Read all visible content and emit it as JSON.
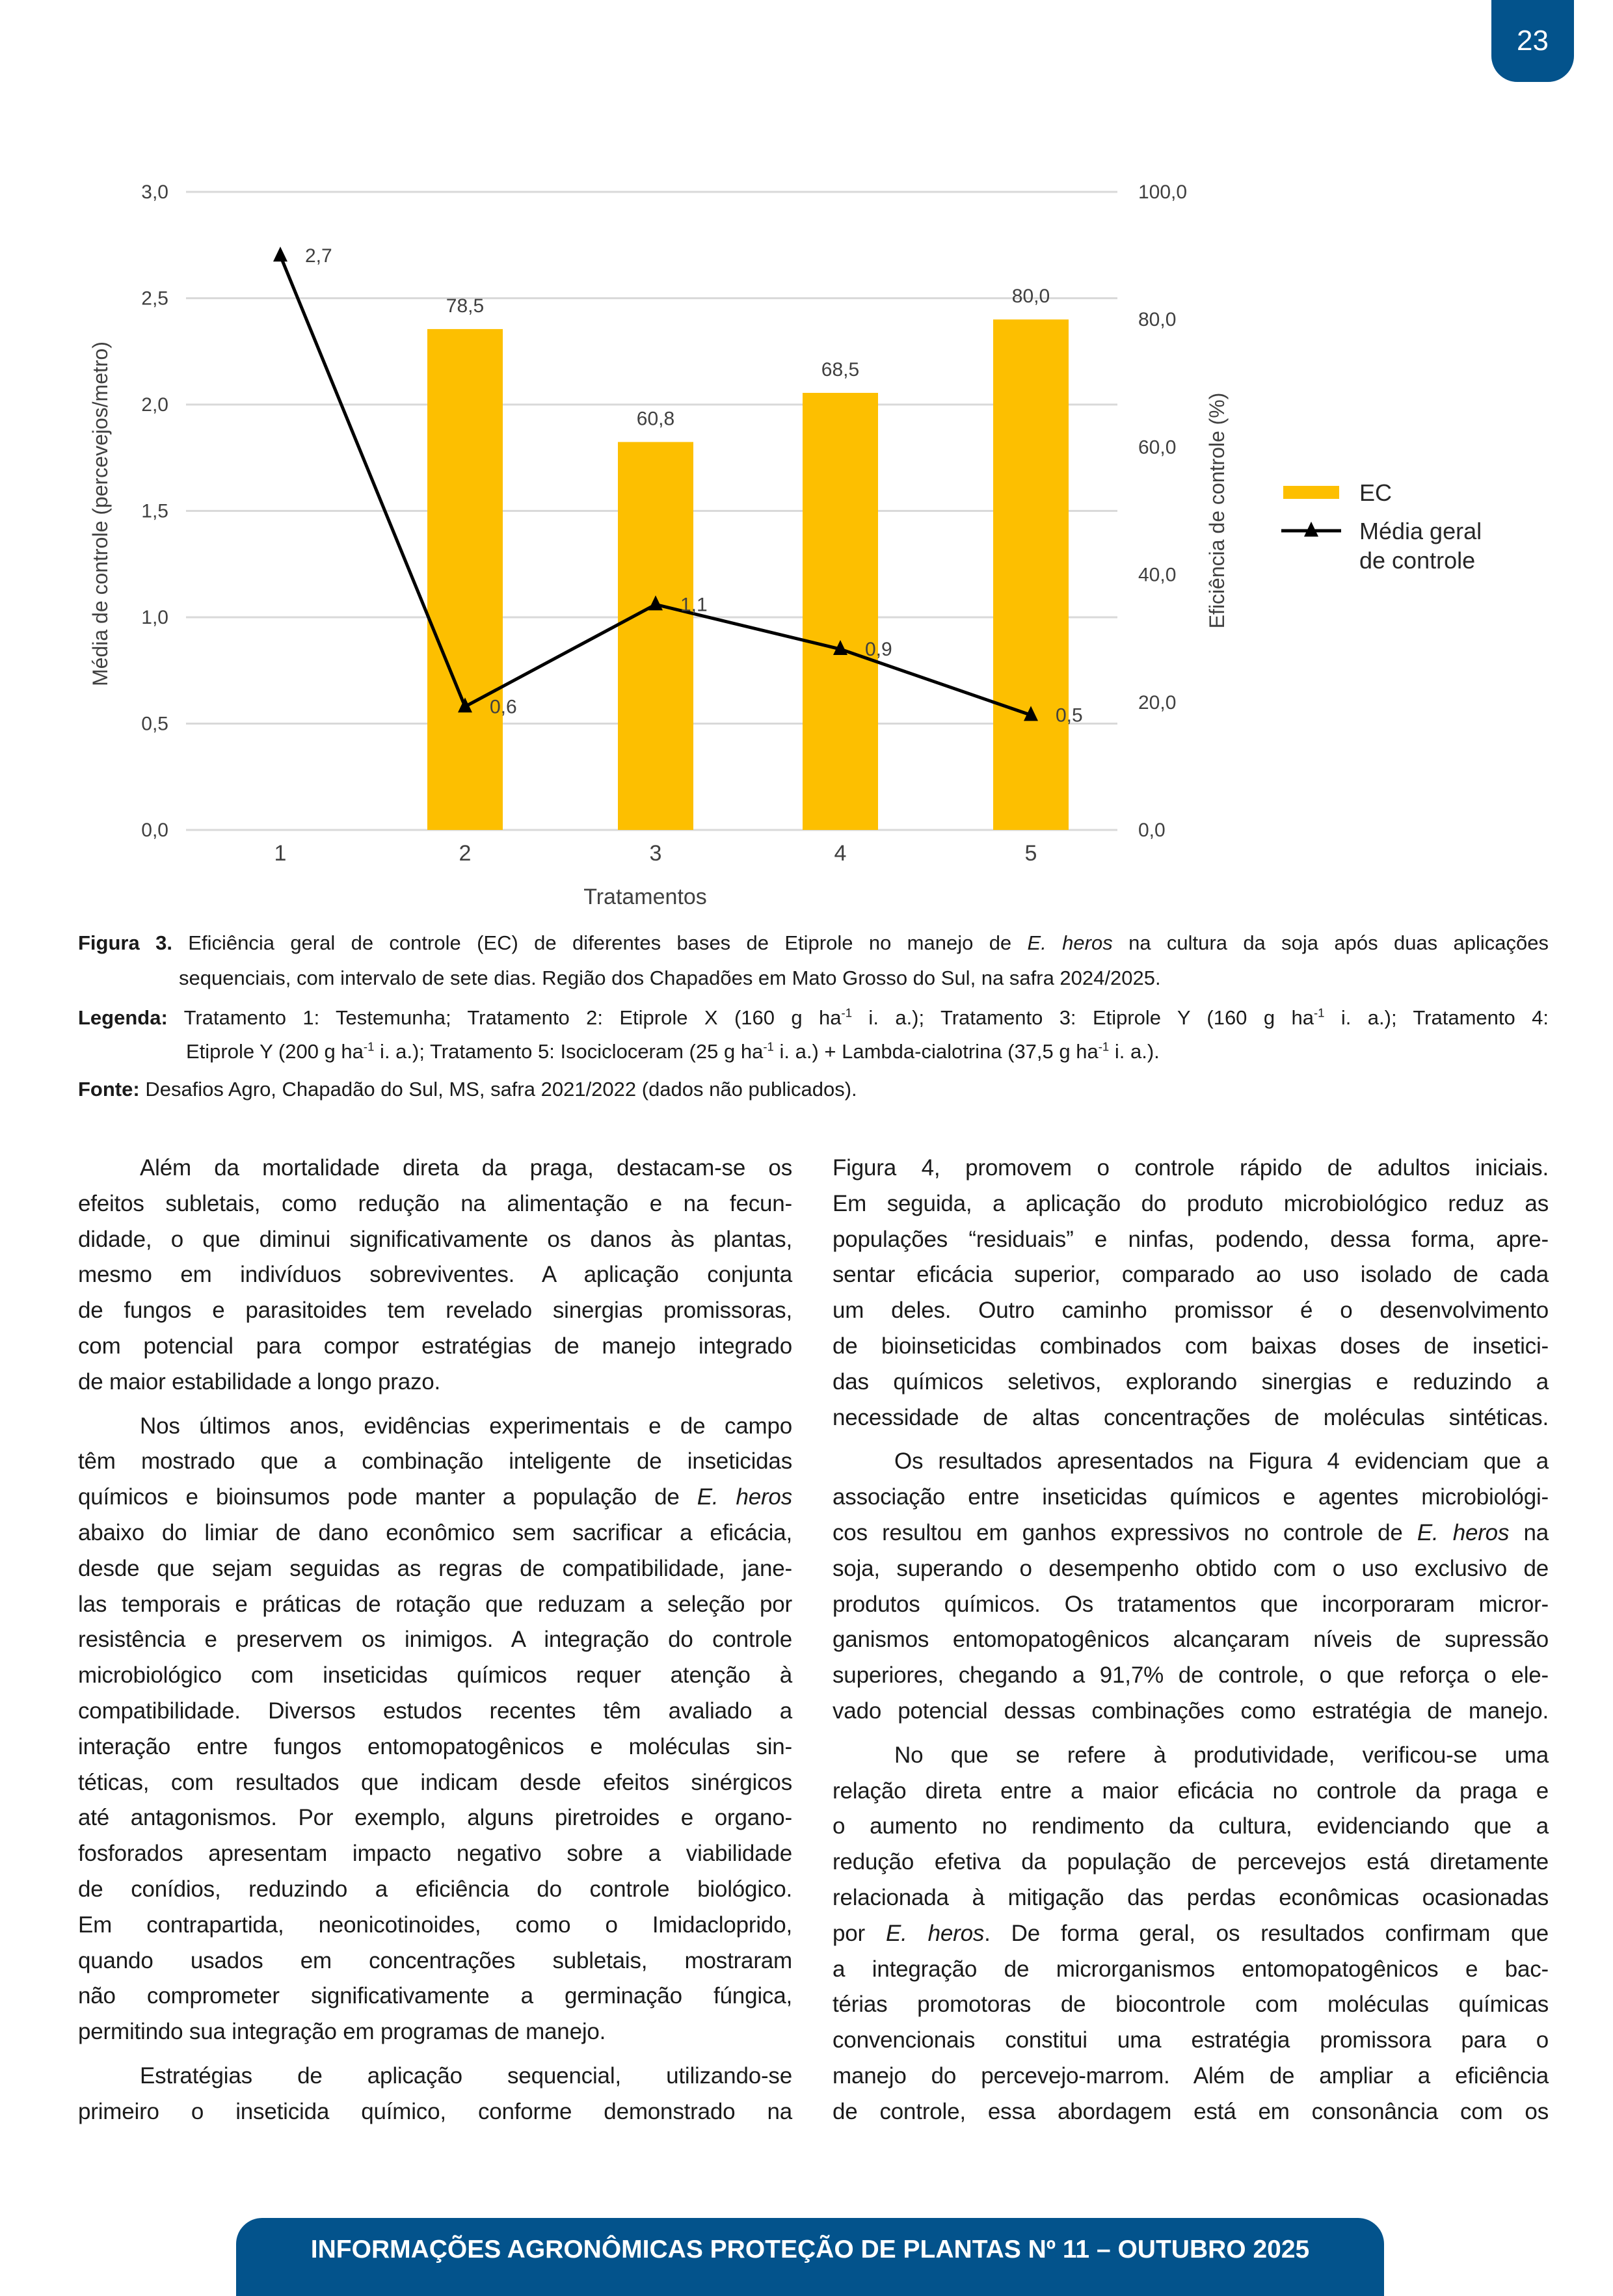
{
  "page_number": "23",
  "chart_data": {
    "type": "bar+line",
    "categories": [
      "1",
      "2",
      "3",
      "4",
      "5"
    ],
    "xlabel": "Tratamentos",
    "ylabel_left": "Média de controle (percevejos/metro)",
    "ylabel_right": "Eficiência de controle (%)",
    "ylim_left": [
      0,
      3.0
    ],
    "ylim_right": [
      0,
      100
    ],
    "yticks_left": [
      "0,0",
      "0,5",
      "1,0",
      "1,5",
      "2,0",
      "2,5",
      "3,0"
    ],
    "yticks_right": [
      "0,0",
      "20,0",
      "40,0",
      "60,0",
      "80,0",
      "100,0"
    ],
    "grid": true,
    "legend_position": "right",
    "series": [
      {
        "name": "EC",
        "type": "bar",
        "axis": "right",
        "color": "#fdbf00",
        "values": [
          null,
          78.5,
          60.8,
          68.5,
          80.0
        ],
        "labels": [
          "",
          "78,5",
          "60,8",
          "68,5",
          "80,0"
        ]
      },
      {
        "name": "Média geral de controle",
        "legend_lines": [
          "Média geral",
          "de controle"
        ],
        "type": "line",
        "axis": "left",
        "color": "#000000",
        "marker": "triangle",
        "values": [
          2.7,
          0.58,
          1.06,
          0.85,
          0.54
        ],
        "labels": [
          "2,7",
          "0,6",
          "1,1",
          "0,9",
          "0,5"
        ]
      }
    ]
  },
  "caption": {
    "lines": [
      [
        [
          "b",
          "Figura 3."
        ],
        [
          "",
          " Eficiência geral de controle (EC) de diferentes bases de Etiprole no manejo de "
        ],
        [
          "i",
          "E. heros"
        ],
        [
          "",
          " na cultura da soja após duas aplicações"
        ]
      ],
      [
        [
          "",
          "sequenciais, com intervalo de sete dias. Região dos Chapadões em Mato Grosso do Sul, na safra 2024/2025."
        ]
      ],
      [
        [
          "b",
          "Legenda:"
        ],
        [
          "",
          " Tratamento 1: Testemunha; Tratamento 2: Etiprole X (160 g ha"
        ],
        [
          "sup",
          "-1"
        ],
        [
          "",
          " i. a.); Tratamento 3: Etiprole Y (160 g ha"
        ],
        [
          "sup",
          "-1"
        ],
        [
          "",
          " i. a.); Tratamento 4:"
        ]
      ],
      [
        [
          "",
          "Etiprole Y (200 g ha"
        ],
        [
          "sup",
          "-1"
        ],
        [
          "",
          " i. a.); Tratamento 5: Isocicloceram (25 g ha"
        ],
        [
          "sup",
          "-1"
        ],
        [
          "",
          " i. a.) + Lambda-cialotrina  (37,5 g ha"
        ],
        [
          "sup",
          "-1"
        ],
        [
          "",
          " i. a.)."
        ]
      ],
      [
        [
          "b",
          "Fonte:"
        ],
        [
          "",
          " Desafios Agro, Chapadão do Sul, MS, safra 2021/2022 (dados não publicados)."
        ]
      ]
    ]
  },
  "body": {
    "left": [
      {
        "indent": true,
        "ends": true,
        "lines": [
          [
            [
              "",
              "Além da mortalidade direta da praga, destacam-se os"
            ]
          ],
          [
            [
              "",
              "efeitos subletais, como redução na alimentação e na fecun-"
            ]
          ],
          [
            [
              "",
              "didade, o que diminui significativamente os danos às plantas,"
            ]
          ],
          [
            [
              "",
              "mesmo em indivíduos sobreviventes. A aplicação conjunta"
            ]
          ],
          [
            [
              "",
              "de fungos e parasitoides tem revelado sinergias promissoras,"
            ]
          ],
          [
            [
              "",
              "com potencial para compor estratégias de manejo integrado"
            ]
          ],
          [
            [
              "",
              "de maior estabilidade a longo prazo."
            ]
          ]
        ]
      },
      {
        "indent": true,
        "ends": true,
        "lines": [
          [
            [
              "",
              "Nos últimos anos, evidências experimentais e de campo"
            ]
          ],
          [
            [
              "",
              "têm mostrado que a combinação inteligente de inseticidas"
            ]
          ],
          [
            [
              "",
              "químicos e bioinsumos pode manter a população de "
            ],
            [
              "i",
              "E. heros"
            ]
          ],
          [
            [
              "",
              "abaixo do limiar de dano econômico sem sacrificar a eficácia,"
            ]
          ],
          [
            [
              "",
              "desde que sejam seguidas as regras de compatibilidade, jane-"
            ]
          ],
          [
            [
              "",
              "las temporais e práticas de rotação que reduzam a seleção por"
            ]
          ],
          [
            [
              "",
              "resistência e preservem os inimigos. A integração do controle"
            ]
          ],
          [
            [
              "",
              "microbiológico com inseticidas químicos requer atenção à"
            ]
          ],
          [
            [
              "",
              "compatibilidade. Diversos estudos recentes têm avaliado a"
            ]
          ],
          [
            [
              "",
              "interação entre fungos entomopatogênicos e moléculas sin-"
            ]
          ],
          [
            [
              "",
              "téticas, com resultados que indicam desde efeitos sinérgicos"
            ]
          ],
          [
            [
              "",
              "até antagonismos. Por exemplo, alguns piretroides e organo-"
            ]
          ],
          [
            [
              "",
              "fosforados apresentam impacto negativo sobre a viabilidade"
            ]
          ],
          [
            [
              "",
              "de conídios, reduzindo a eficiência do controle biológico."
            ]
          ],
          [
            [
              "",
              "Em contrapartida, neonicotinoides, como o Imidacloprido,"
            ]
          ],
          [
            [
              "",
              "quando usados em concentrações subletais, mostraram"
            ]
          ],
          [
            [
              "",
              "não comprometer significativamente a germinação fúngica,"
            ]
          ],
          [
            [
              "",
              "permitindo sua integração em programas de manejo."
            ]
          ]
        ]
      },
      {
        "indent": true,
        "ends": false,
        "lines": [
          [
            [
              "",
              "Estratégias de aplicação sequencial, utilizando-se"
            ]
          ],
          [
            [
              "",
              "primeiro o inseticida químico, conforme demonstrado na"
            ]
          ]
        ]
      }
    ],
    "right": [
      {
        "indent": false,
        "ends": false,
        "lines": [
          [
            [
              "",
              "Figura 4, promovem o controle rápido de adultos iniciais."
            ]
          ],
          [
            [
              "",
              "Em seguida, a aplicação do produto microbiológico reduz as"
            ]
          ],
          [
            [
              "",
              "populações “residuais” e ninfas, podendo, dessa forma, apre-"
            ]
          ],
          [
            [
              "",
              "sentar eficácia superior, comparado ao uso isolado de cada"
            ]
          ],
          [
            [
              "",
              "um deles. Outro caminho promissor é o desenvolvimento"
            ]
          ],
          [
            [
              "",
              "de bioinseticidas combinados com baixas doses de insetici-"
            ]
          ],
          [
            [
              "",
              "das químicos seletivos, explorando sinergias e reduzindo a"
            ]
          ],
          [
            [
              "",
              "necessidade de altas concentrações de moléculas sintéticas."
            ]
          ]
        ]
      },
      {
        "indent": true,
        "ends": false,
        "lines": [
          [
            [
              "",
              "Os resultados apresentados na Figura 4 evidenciam que a"
            ]
          ],
          [
            [
              "",
              "associação entre inseticidas químicos e agentes microbiológi-"
            ]
          ],
          [
            [
              "",
              "cos resultou em ganhos expressivos no controle de "
            ],
            [
              "i",
              "E. heros"
            ],
            [
              "",
              " na"
            ]
          ],
          [
            [
              "",
              "soja, superando o desempenho obtido com o uso exclusivo de"
            ]
          ],
          [
            [
              "",
              "produtos químicos. Os tratamentos que incorporaram micror-"
            ]
          ],
          [
            [
              "",
              "ganismos entomopatogênicos alcançaram níveis de supressão"
            ]
          ],
          [
            [
              "",
              "superiores, chegando a 91,7% de controle, o que reforça o ele-"
            ]
          ],
          [
            [
              "",
              "vado potencial dessas combinações como estratégia de manejo."
            ]
          ]
        ]
      },
      {
        "indent": true,
        "ends": false,
        "lines": [
          [
            [
              "",
              "No que se refere à produtividade, verificou-se uma"
            ]
          ],
          [
            [
              "",
              "relação direta entre a maior eficácia no controle da praga e"
            ]
          ],
          [
            [
              "",
              "o aumento no rendimento da cultura, evidenciando que a"
            ]
          ],
          [
            [
              "",
              "redução efetiva da população de percevejos está diretamente"
            ]
          ],
          [
            [
              "",
              "relacionada à mitigação das perdas econômicas ocasionadas"
            ]
          ],
          [
            [
              "",
              "por "
            ],
            [
              "i",
              "E. heros"
            ],
            [
              "",
              ". De forma geral, os resultados confirmam que"
            ]
          ],
          [
            [
              "",
              "a integração de microrganismos entomopatogênicos e bac-"
            ]
          ],
          [
            [
              "",
              "térias promotoras de biocontrole com moléculas químicas"
            ]
          ],
          [
            [
              "",
              "convencionais constitui uma estratégia promissora para o"
            ]
          ],
          [
            [
              "",
              "manejo do percevejo-marrom. Além de ampliar a eficiência"
            ]
          ],
          [
            [
              "",
              "de controle, essa abordagem está em consonância com os"
            ]
          ]
        ]
      }
    ]
  },
  "footer": {
    "text": "INFORMAÇÕES AGRONÔMICAS PROTEÇÃO DE PLANTAS Nº 11 – OUTUBRO 2025"
  },
  "colors": {
    "brand_blue": "#03538c",
    "bar": "#fdbf00",
    "grid": "#d9d9d9"
  }
}
